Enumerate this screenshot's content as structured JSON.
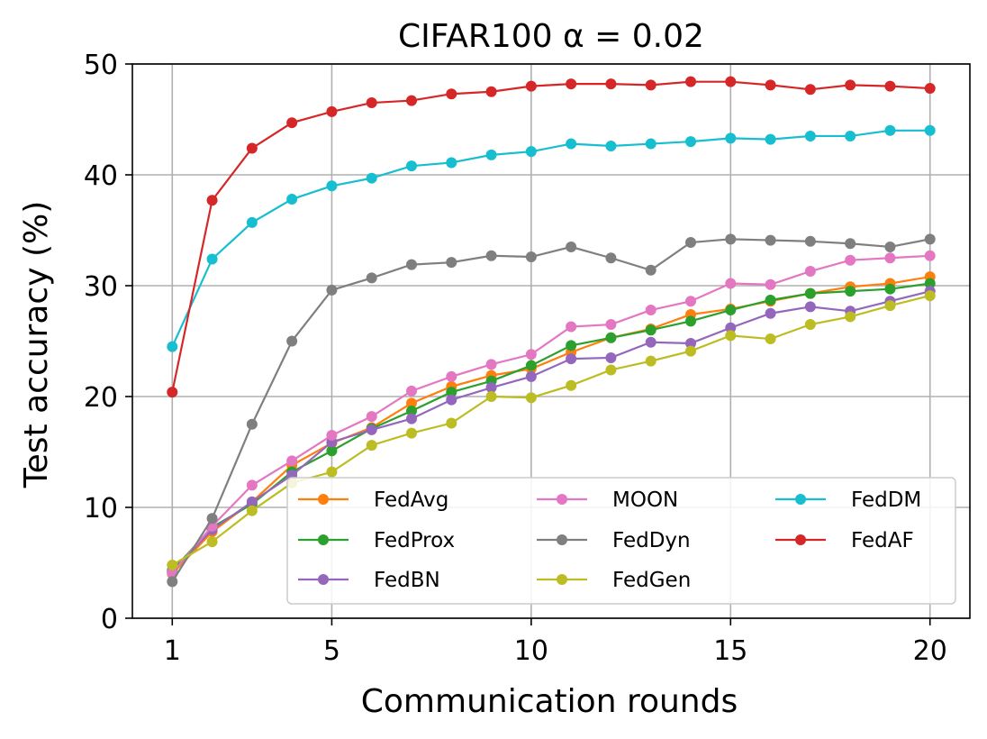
{
  "chart_data": {
    "type": "line",
    "title": "CIFAR100 α = 0.02",
    "xlabel": "Communication rounds",
    "ylabel": "Test accuracy (%)",
    "xlim": [
      0,
      21
    ],
    "ylim": [
      0,
      50
    ],
    "x": [
      1,
      2,
      3,
      4,
      5,
      6,
      7,
      8,
      9,
      10,
      11,
      12,
      13,
      14,
      15,
      16,
      17,
      18,
      19,
      20
    ],
    "x_ticks": [
      1,
      5,
      10,
      15,
      20
    ],
    "y_ticks": [
      0,
      10,
      20,
      30,
      40,
      50
    ],
    "grid": true,
    "legend_position": "lower-right",
    "series": [
      {
        "name": "FedAvg",
        "color": "#ff7f0e",
        "values": [
          4.0,
          7.8,
          10.5,
          13.8,
          15.8,
          17.2,
          19.4,
          20.9,
          21.9,
          22.5,
          24.0,
          25.3,
          26.1,
          27.4,
          27.9,
          28.6,
          29.3,
          29.9,
          30.2,
          30.8
        ]
      },
      {
        "name": "FedProx",
        "color": "#2ca02c",
        "values": [
          4.3,
          8.2,
          10.3,
          13.2,
          15.1,
          17.1,
          18.7,
          20.4,
          21.4,
          22.8,
          24.6,
          25.3,
          26.0,
          26.8,
          27.8,
          28.7,
          29.3,
          29.5,
          29.7,
          30.2
        ]
      },
      {
        "name": "FedBN",
        "color": "#9467bd",
        "values": [
          4.2,
          8.0,
          10.5,
          12.9,
          15.9,
          17.0,
          18.0,
          19.7,
          20.8,
          21.8,
          23.4,
          23.5,
          24.9,
          24.8,
          26.2,
          27.5,
          28.1,
          27.7,
          28.6,
          29.5
        ]
      },
      {
        "name": "MOON",
        "color": "#e377c2",
        "values": [
          4.1,
          8.3,
          12.0,
          14.2,
          16.5,
          18.2,
          20.5,
          21.8,
          22.9,
          23.8,
          26.3,
          26.5,
          27.8,
          28.6,
          30.2,
          30.1,
          31.3,
          32.3,
          32.5,
          32.7
        ]
      },
      {
        "name": "FedDyn",
        "color": "#7f7f7f",
        "values": [
          3.3,
          9.0,
          17.5,
          25.0,
          29.6,
          30.7,
          31.9,
          32.1,
          32.7,
          32.6,
          33.5,
          32.5,
          31.4,
          33.9,
          34.2,
          34.1,
          34.0,
          33.8,
          33.5,
          34.2
        ]
      },
      {
        "name": "FedGen",
        "color": "#bcbd22",
        "values": [
          4.8,
          6.9,
          9.7,
          12.2,
          13.2,
          15.6,
          16.7,
          17.6,
          20.0,
          19.9,
          21.0,
          22.4,
          23.2,
          24.1,
          25.5,
          25.2,
          26.5,
          27.2,
          28.2,
          29.1
        ]
      },
      {
        "name": "FedDM",
        "color": "#17becf",
        "values": [
          24.5,
          32.4,
          35.7,
          37.8,
          39.0,
          39.7,
          40.8,
          41.1,
          41.8,
          42.1,
          42.8,
          42.6,
          42.8,
          43.0,
          43.3,
          43.2,
          43.5,
          43.5,
          44.0,
          44.0
        ]
      },
      {
        "name": "FedAF",
        "color": "#d62728",
        "values": [
          20.4,
          37.7,
          42.4,
          44.7,
          45.7,
          46.5,
          46.7,
          47.3,
          47.5,
          48.0,
          48.2,
          48.2,
          48.1,
          48.4,
          48.4,
          48.1,
          47.7,
          48.1,
          48.0,
          47.8
        ]
      }
    ]
  }
}
